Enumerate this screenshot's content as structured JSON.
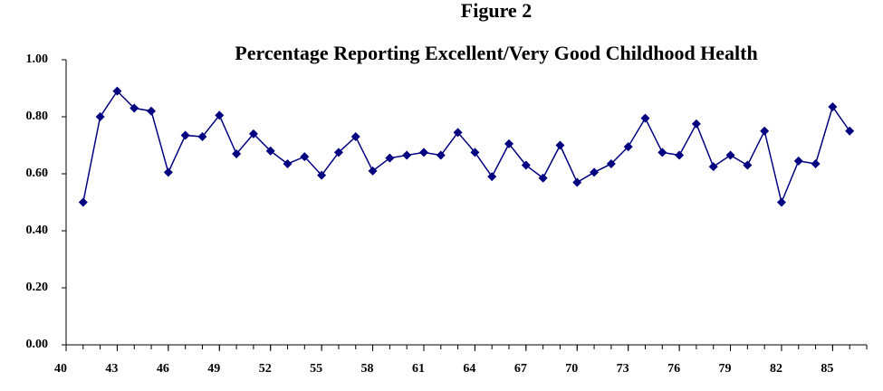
{
  "chart_data": {
    "type": "line",
    "title": "Figure 2",
    "subtitle": "Percentage Reporting Excellent/Very Good Childhood Health",
    "x": [
      41,
      42,
      43,
      44,
      45,
      46,
      47,
      48,
      49,
      50,
      51,
      52,
      53,
      54,
      55,
      56,
      57,
      58,
      59,
      60,
      61,
      62,
      63,
      64,
      65,
      66,
      67,
      68,
      69,
      70,
      71,
      72,
      73,
      74,
      75,
      76,
      77,
      78,
      79,
      80,
      81,
      82,
      83,
      84,
      85,
      86
    ],
    "values": [
      0.5,
      0.8,
      0.89,
      0.83,
      0.82,
      0.605,
      0.735,
      0.73,
      0.805,
      0.67,
      0.74,
      0.68,
      0.635,
      0.66,
      0.595,
      0.675,
      0.73,
      0.61,
      0.655,
      0.665,
      0.675,
      0.665,
      0.745,
      0.675,
      0.59,
      0.705,
      0.63,
      0.585,
      0.7,
      0.57,
      0.605,
      0.635,
      0.695,
      0.795,
      0.675,
      0.665,
      0.775,
      0.625,
      0.665,
      0.63,
      0.75,
      0.5,
      0.645,
      0.635,
      0.835,
      0.75
    ],
    "color": "#000080",
    "xlim": [
      40,
      87
    ],
    "xticks": [
      40,
      43,
      46,
      49,
      52,
      55,
      58,
      61,
      64,
      67,
      70,
      73,
      76,
      79,
      82,
      85
    ],
    "ylim": [
      0,
      1
    ],
    "yticks": [
      {
        "value": 0,
        "label": "0.00"
      },
      {
        "value": 0.2,
        "label": "0.20"
      },
      {
        "value": 0.4,
        "label": "0.40"
      },
      {
        "value": 0.6,
        "label": "0.60"
      },
      {
        "value": 0.8,
        "label": "0.80"
      },
      {
        "value": 1,
        "label": "1.00"
      }
    ],
    "grid": false
  }
}
